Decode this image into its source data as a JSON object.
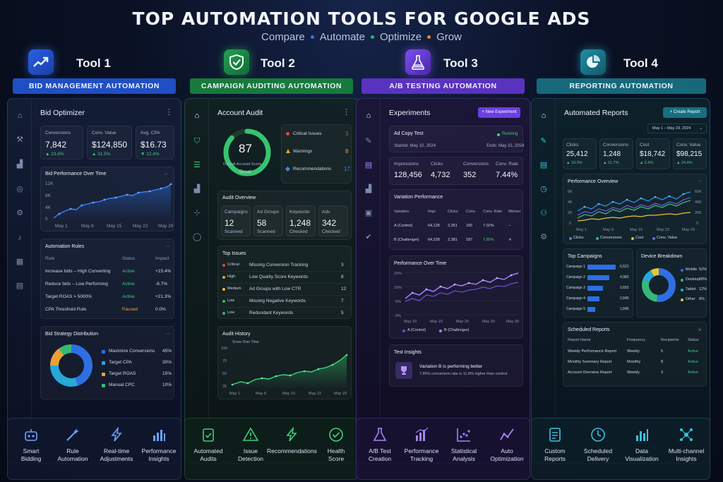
{
  "header": {
    "title": "TOP AUTOMATION TOOLS FOR GOOGLE ADS",
    "subtitle": [
      "Compare",
      "Automate",
      "Optimize",
      "Grow"
    ],
    "dot_colors": [
      "#3b6fe0",
      "#2fb56a",
      "#e08a2a"
    ]
  },
  "tool1": {
    "name": "Tool 1",
    "banner": "BID MANAGEMENT AUTOMATION",
    "accent": "#2b5fd6",
    "panel_title": "Bid Optimizer",
    "kpis": [
      {
        "label": "Conversions",
        "value": "7,842",
        "change": "▲ 23.6%"
      },
      {
        "label": "Conv. Value",
        "value": "$124,850",
        "change": "▲ 31.5%"
      },
      {
        "label": "Avg. CPA",
        "value": "$16.73",
        "change": "▼ 12.4%"
      }
    ],
    "chart": {
      "title": "Bid Performance Over Time",
      "yticks": [
        "12K",
        "8K",
        "4K",
        "0"
      ],
      "xticks": [
        "May 1",
        "May 8",
        "May 15",
        "May 22",
        "May 29"
      ]
    },
    "rules": {
      "title": "Automation Rules",
      "headers": [
        "Rule",
        "Status",
        "Impact"
      ],
      "rows": [
        {
          "rule": "Increase bids – High Converting",
          "status": "Active",
          "impact": "+15.4%"
        },
        {
          "rule": "Reduce bids – Low Performing",
          "status": "Active",
          "impact": "-8.7%"
        },
        {
          "rule": "Target ROAS > 5000%",
          "status": "Active",
          "impact": "+21.3%"
        },
        {
          "rule": "CPA Threshold Rule",
          "status": "Paused",
          "impact": "0.0%"
        }
      ]
    },
    "distribution": {
      "title": "Bid Strategy Distribution",
      "items": [
        {
          "label": "Maximize Conversions",
          "pct": "45%",
          "value": 45,
          "color": "#2f6fe4"
        },
        {
          "label": "Target CPA",
          "pct": "30%",
          "value": 30,
          "color": "#27a8d8"
        },
        {
          "label": "Target ROAS",
          "pct": "15%",
          "value": 15,
          "color": "#e9a233"
        },
        {
          "label": "Manual CPC",
          "pct": "10%",
          "value": 10,
          "color": "#37b879"
        }
      ]
    },
    "features": [
      "Smart|Bidding",
      "Rule|Automation",
      "Real-time|Adjustments",
      "Performance|Insights"
    ]
  },
  "tool2": {
    "name": "Tool 2",
    "banner": "CAMPAIGN AUDITING AUTOMATION",
    "accent": "#1e8d4a",
    "panel_title": "Account Audit",
    "score": {
      "value": "87",
      "label": "Overall Account Score",
      "grade": "Great"
    },
    "issues": [
      {
        "label": "Critical Issues",
        "count": "3",
        "color": "#e0483c"
      },
      {
        "label": "Warnings",
        "count": "8",
        "color": "#e8a22c"
      },
      {
        "label": "Recommendations",
        "count": "17",
        "color": "#3f86e8"
      }
    ],
    "overview": {
      "title": "Audit Overview",
      "items": [
        {
          "label": "Campaigns",
          "value": "12",
          "sub": "Scanned"
        },
        {
          "label": "Ad Groups",
          "value": "58",
          "sub": "Scanned"
        },
        {
          "label": "Keywords",
          "value": "1,248",
          "sub": "Checked"
        },
        {
          "label": "Ads",
          "value": "342",
          "sub": "Checked"
        }
      ]
    },
    "top_issues": {
      "title": "Top Issues",
      "rows": [
        {
          "sev": "Critical",
          "text": "Missing Conversion Tracking",
          "n": "3",
          "color": "#e0483c"
        },
        {
          "sev": "High",
          "text": "Low Quality Score Keywords",
          "n": "8",
          "color": "#e8a22c"
        },
        {
          "sev": "Medium",
          "text": "Ad Groups with Low CTR",
          "n": "12",
          "color": "#e8c42c"
        },
        {
          "sev": "Low",
          "text": "Missing Negative Keywords",
          "n": "7",
          "color": "#37b879"
        },
        {
          "sev": "Low",
          "text": "Redundant Keywords",
          "n": "5",
          "color": "#37b879"
        }
      ]
    },
    "history": {
      "title": "Audit History",
      "legend": "Score Over Time",
      "yticks": [
        "100",
        "75",
        "50",
        "25"
      ],
      "xticks": [
        "May 1",
        "May 8",
        "May 15",
        "May 22",
        "May 29"
      ]
    },
    "features": [
      "Automated|Audits",
      "Issue|Detection",
      "Recommendations",
      "Health|Score"
    ]
  },
  "tool3": {
    "name": "Tool 3",
    "banner": "A/B TESTING AUTOMATION",
    "accent": "#6a3fd6",
    "panel_title": "Experiments",
    "new_button": "+ New Experiment",
    "test": {
      "name": "Ad Copy Test",
      "status": "Running",
      "started": "Started: May 10, 2024",
      "ends": "Ends: May 31, 2024"
    },
    "metrics": [
      {
        "label": "Impressions",
        "value": "128,456"
      },
      {
        "label": "Clicks",
        "value": "4,732"
      },
      {
        "label": "Conversions",
        "value": "352"
      },
      {
        "label": "Conv. Rate",
        "value": "7.44%"
      }
    ],
    "variation": {
      "title": "Variation Performance",
      "headers": [
        "Variation",
        "Impr.",
        "Clicks",
        "Conv.",
        "Conv. Rate",
        "Winner"
      ],
      "rows": [
        [
          "A (Control)",
          "64,128",
          "2,351",
          "165",
          "7.02%",
          "–"
        ],
        [
          "B (Challenger)",
          "64,328",
          "2,381",
          "187",
          "7.85%",
          "★"
        ]
      ]
    },
    "perf": {
      "title": "Performance Over Time",
      "yticks": [
        "15%",
        "10%",
        "5%",
        "0%"
      ],
      "xticks": [
        "May 10",
        "May 15",
        "May 20",
        "May 25",
        "May 30"
      ],
      "legend": [
        "A (Control)",
        "B (Challenger)"
      ]
    },
    "insights": {
      "title": "Test Insights",
      "line1": "Variation B is performing better",
      "line2": "7.85% conversion rate is 11.8% higher than control."
    },
    "features": [
      "A/B Test|Creation",
      "Performance|Tracking",
      "Statistical|Analysis",
      "Auto|Optimization"
    ]
  },
  "tool4": {
    "name": "Tool 4",
    "banner": "REPORTING AUTOMATION",
    "accent": "#1a7a8e",
    "panel_title": "Automated Reports",
    "create_button": "+ Create Report",
    "date_range": "May 1 – May 29, 2024",
    "kpis": [
      {
        "label": "Clicks",
        "value": "25,412",
        "change": "▲ 18.3%"
      },
      {
        "label": "Conversions",
        "value": "1,248",
        "change": "▲ 21.7%"
      },
      {
        "label": "Cost",
        "value": "$18,742",
        "change": "▲ 6.5%"
      },
      {
        "label": "Conv. Value",
        "value": "$98,215",
        "change": "▲ 24.4%"
      }
    ],
    "overview": {
      "title": "Performance Overview",
      "yticks_left": [
        "6K",
        "4K",
        "2K",
        "0"
      ],
      "yticks_right": [
        "60K",
        "40K",
        "20K",
        "0"
      ],
      "xticks": [
        "May 1",
        "May 8",
        "May 15",
        "May 22",
        "May 29"
      ],
      "legend": [
        "Clicks",
        "Conversions",
        "Cost",
        "Conv. Value"
      ]
    },
    "campaigns": {
      "title": "Top Campaigns",
      "rows": [
        {
          "name": "Campaign 1",
          "value": "6,521",
          "num": 6521
        },
        {
          "name": "Campaign 2",
          "value": "4,982",
          "num": 4982
        },
        {
          "name": "Campaign 3",
          "value": "3,652",
          "num": 3652
        },
        {
          "name": "Campaign 4",
          "value": "2,845",
          "num": 2845
        },
        {
          "name": "Campaign 5",
          "value": "1,845",
          "num": 1845
        }
      ]
    },
    "devices": {
      "title": "Device Breakdown",
      "items": [
        {
          "label": "Mobile",
          "pct": "52%",
          "value": 52,
          "color": "#2f6fe4"
        },
        {
          "label": "Desktop",
          "pct": "28%",
          "value": 28,
          "color": "#37b879"
        },
        {
          "label": "Tablet",
          "pct": "12%",
          "value": 12,
          "color": "#27a8d8"
        },
        {
          "label": "Other",
          "pct": "8%",
          "value": 8,
          "color": "#e9c233"
        }
      ]
    },
    "scheduled": {
      "title": "Scheduled Reports",
      "headers": [
        "Report Name",
        "Frequency",
        "Recipients",
        "Status"
      ],
      "rows": [
        [
          "Weekly Performance Report",
          "Weekly",
          "5",
          "Active"
        ],
        [
          "Monthly Summary Report",
          "Monthly",
          "8",
          "Active"
        ],
        [
          "Account Overview Report",
          "Weekly",
          "3",
          "Active"
        ]
      ]
    },
    "features": [
      "Custom|Reports",
      "Scheduled|Delivery",
      "Data|Visualization",
      "Multi-channel|Insights"
    ]
  }
}
